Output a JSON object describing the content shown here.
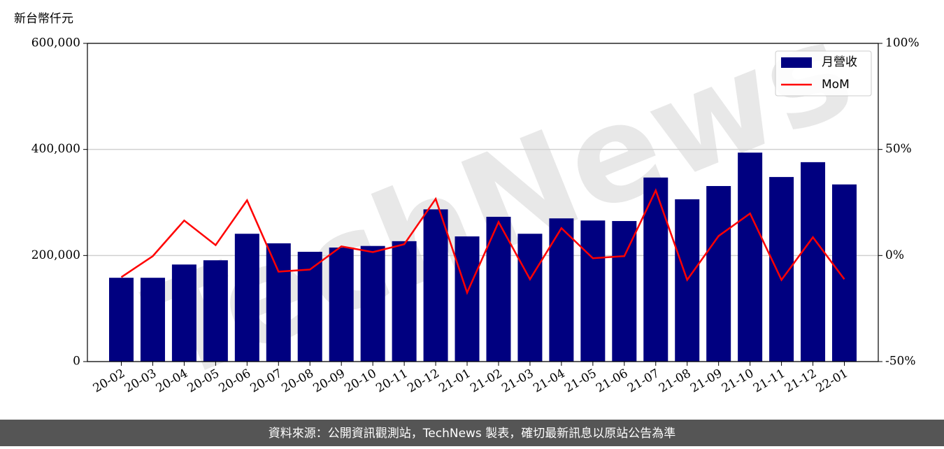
{
  "chart_data": {
    "type": "bar",
    "y_label": "新台幣仟元",
    "watermark": "TechNews",
    "footer": "資料來源：公開資訊觀測站，TechNews 製表，確切最新訊息以原站公告為準",
    "categories": [
      "20-02",
      "20-03",
      "20-04",
      "20-05",
      "20-06",
      "20-07",
      "20-08",
      "20-09",
      "20-10",
      "20-11",
      "20-12",
      "21-01",
      "21-02",
      "21-03",
      "21-04",
      "21-05",
      "21-06",
      "21-07",
      "21-08",
      "21-09",
      "21-10",
      "21-11",
      "21-12",
      "22-01"
    ],
    "series": [
      {
        "name": "月營收",
        "type": "bar",
        "color": "#000080",
        "values": [
          158000,
          158000,
          183000,
          191000,
          241000,
          223000,
          207000,
          215000,
          218000,
          227000,
          287000,
          236000,
          273000,
          241000,
          270000,
          266000,
          265000,
          347000,
          306000,
          331000,
          394000,
          348000,
          376000,
          334000
        ]
      },
      {
        "name": "MoM",
        "type": "line",
        "axis": "y2",
        "color": "#ff0000",
        "values": [
          -10.2,
          -0.3,
          16.5,
          4.9,
          26.0,
          -7.6,
          -6.6,
          4.3,
          1.6,
          5.3,
          26.7,
          -17.5,
          15.8,
          -11.2,
          12.9,
          -1.3,
          -0.3,
          30.7,
          -11.5,
          9.2,
          19.8,
          -11.5,
          8.6,
          -11.2
        ]
      }
    ],
    "ylim": [
      0,
      600000
    ],
    "yticks": [
      0,
      {
        "value": 200000,
        "label": "200,000"
      },
      {
        "value": 400000,
        "label": "400,000"
      },
      {
        "value": 600000,
        "label": "600,000"
      }
    ],
    "y2lim": [
      -50,
      100
    ],
    "y2ticks": [
      {
        "value": -50,
        "label": "-50%"
      },
      {
        "value": 0,
        "label": "0%"
      },
      {
        "value": 50,
        "label": "50%"
      },
      {
        "value": 100,
        "label": "100%"
      }
    ],
    "grid": true,
    "legend": "upper right"
  }
}
